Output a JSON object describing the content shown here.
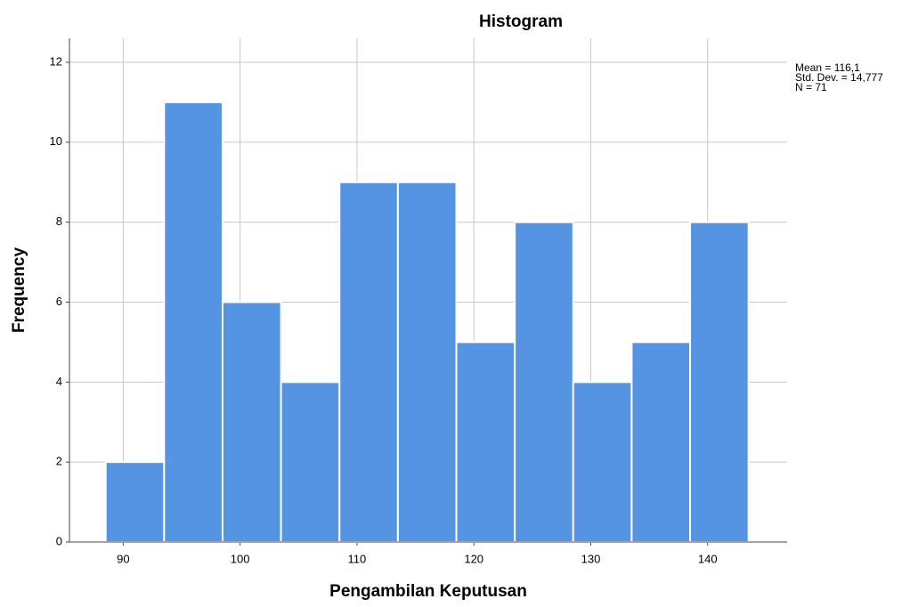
{
  "chart_data": {
    "type": "histogram",
    "title": "Histogram",
    "x_label": "Pengambilan Keputusan",
    "y_label": "Frequency",
    "bins": [
      88.5,
      93.5,
      98.5,
      103.5,
      108.5,
      113.5,
      118.5,
      123.5,
      128.5,
      133.5,
      138.5,
      143.5
    ],
    "values": [
      2,
      11,
      6,
      4,
      9,
      9,
      5,
      8,
      4,
      5,
      8
    ],
    "color": "#5594e3",
    "xlim": [
      85.4,
      146.8
    ],
    "xticks": [
      90,
      100,
      110,
      120,
      130,
      140
    ],
    "ylim": [
      0,
      12.6
    ],
    "yticks": [
      0,
      2,
      4,
      6,
      8,
      10,
      12
    ],
    "grid": true,
    "annotations": [
      "Mean = 116,1",
      "Std. Dev. = 14,777",
      "N = 71"
    ]
  }
}
